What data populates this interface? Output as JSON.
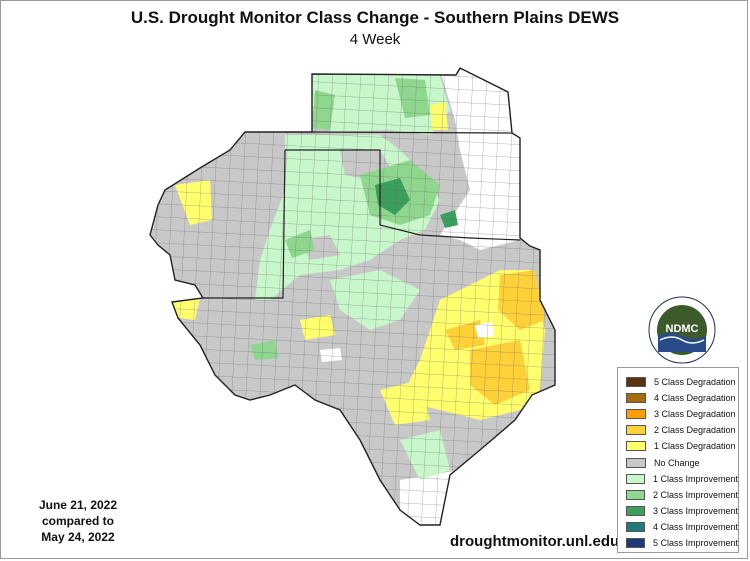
{
  "title": "U.S. Drought Monitor Class Change - Southern Plains DEWS",
  "subtitle": "4 Week",
  "dates": {
    "line1": "June 21, 2022",
    "line2": "compared to",
    "line3": "May 24, 2022"
  },
  "url": "droughtmonitor.unl.edu",
  "logo": {
    "text": "NDMC",
    "ring_text": "NATIONAL DROUGHT MITIGATION CENTER · UNIVERSITY OF NEBRASKA"
  },
  "legend": [
    {
      "label": "5 Class Degradation",
      "color": "#5a3214"
    },
    {
      "label": "4 Class Degradation",
      "color": "#a66b10"
    },
    {
      "label": "3 Class Degradation",
      "color": "#ff9e00"
    },
    {
      "label": "2 Class Degradation",
      "color": "#ffd138"
    },
    {
      "label": "1 Class Degradation",
      "color": "#ffff6e"
    },
    {
      "label": "No Change",
      "color": "#c8c8c8"
    },
    {
      "label": "1 Class Improvement",
      "color": "#c8f7cc"
    },
    {
      "label": "2 Class Improvement",
      "color": "#8fd68f"
    },
    {
      "label": "3 Class Improvement",
      "color": "#3a9e5c"
    },
    {
      "label": "4 Class Improvement",
      "color": "#1f7a7a"
    },
    {
      "label": "5 Class Improvement",
      "color": "#1f3a7a"
    }
  ]
}
